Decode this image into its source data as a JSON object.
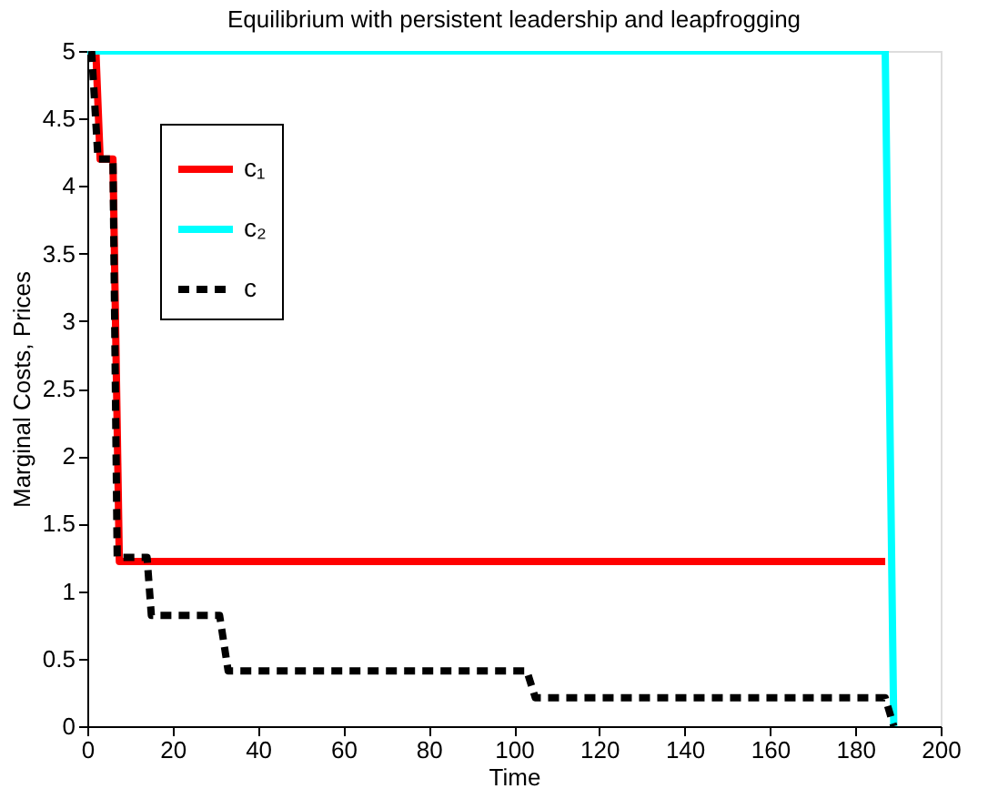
{
  "chart_data": {
    "type": "line",
    "title": "Equilibrium with persistent leadership and leapfrogging",
    "xlabel": "Time",
    "ylabel": "Marginal Costs, Prices",
    "xlim": [
      0,
      200
    ],
    "ylim": [
      0,
      5
    ],
    "xticks": [
      0,
      20,
      40,
      60,
      80,
      100,
      120,
      140,
      160,
      180,
      200
    ],
    "yticks": [
      0,
      0.5,
      1,
      1.5,
      2,
      2.5,
      3,
      3.5,
      4,
      4.5,
      5
    ],
    "grid": false,
    "legend": "top left",
    "marker": "none",
    "series": [
      {
        "name": "c₁",
        "color": "#ff0000",
        "line_style": "solid",
        "x": [
          2,
          3,
          6,
          7.5,
          187
        ],
        "values": [
          5,
          4.2,
          4.2,
          1.22,
          1.22
        ]
      },
      {
        "name": "c₂",
        "color": "#00ffff",
        "line_style": "solid",
        "x": [
          0,
          187,
          189
        ],
        "values": [
          5,
          5,
          0
        ]
      },
      {
        "name": "c",
        "color": "#000000",
        "line_style": "dashed",
        "x": [
          1,
          2.5,
          6,
          7,
          14,
          15,
          31,
          33,
          103,
          105,
          187,
          189
        ],
        "values": [
          5,
          4.2,
          4.2,
          1.25,
          1.25,
          0.82,
          0.82,
          0.41,
          0.41,
          0.21,
          0.21,
          0
        ]
      }
    ]
  }
}
